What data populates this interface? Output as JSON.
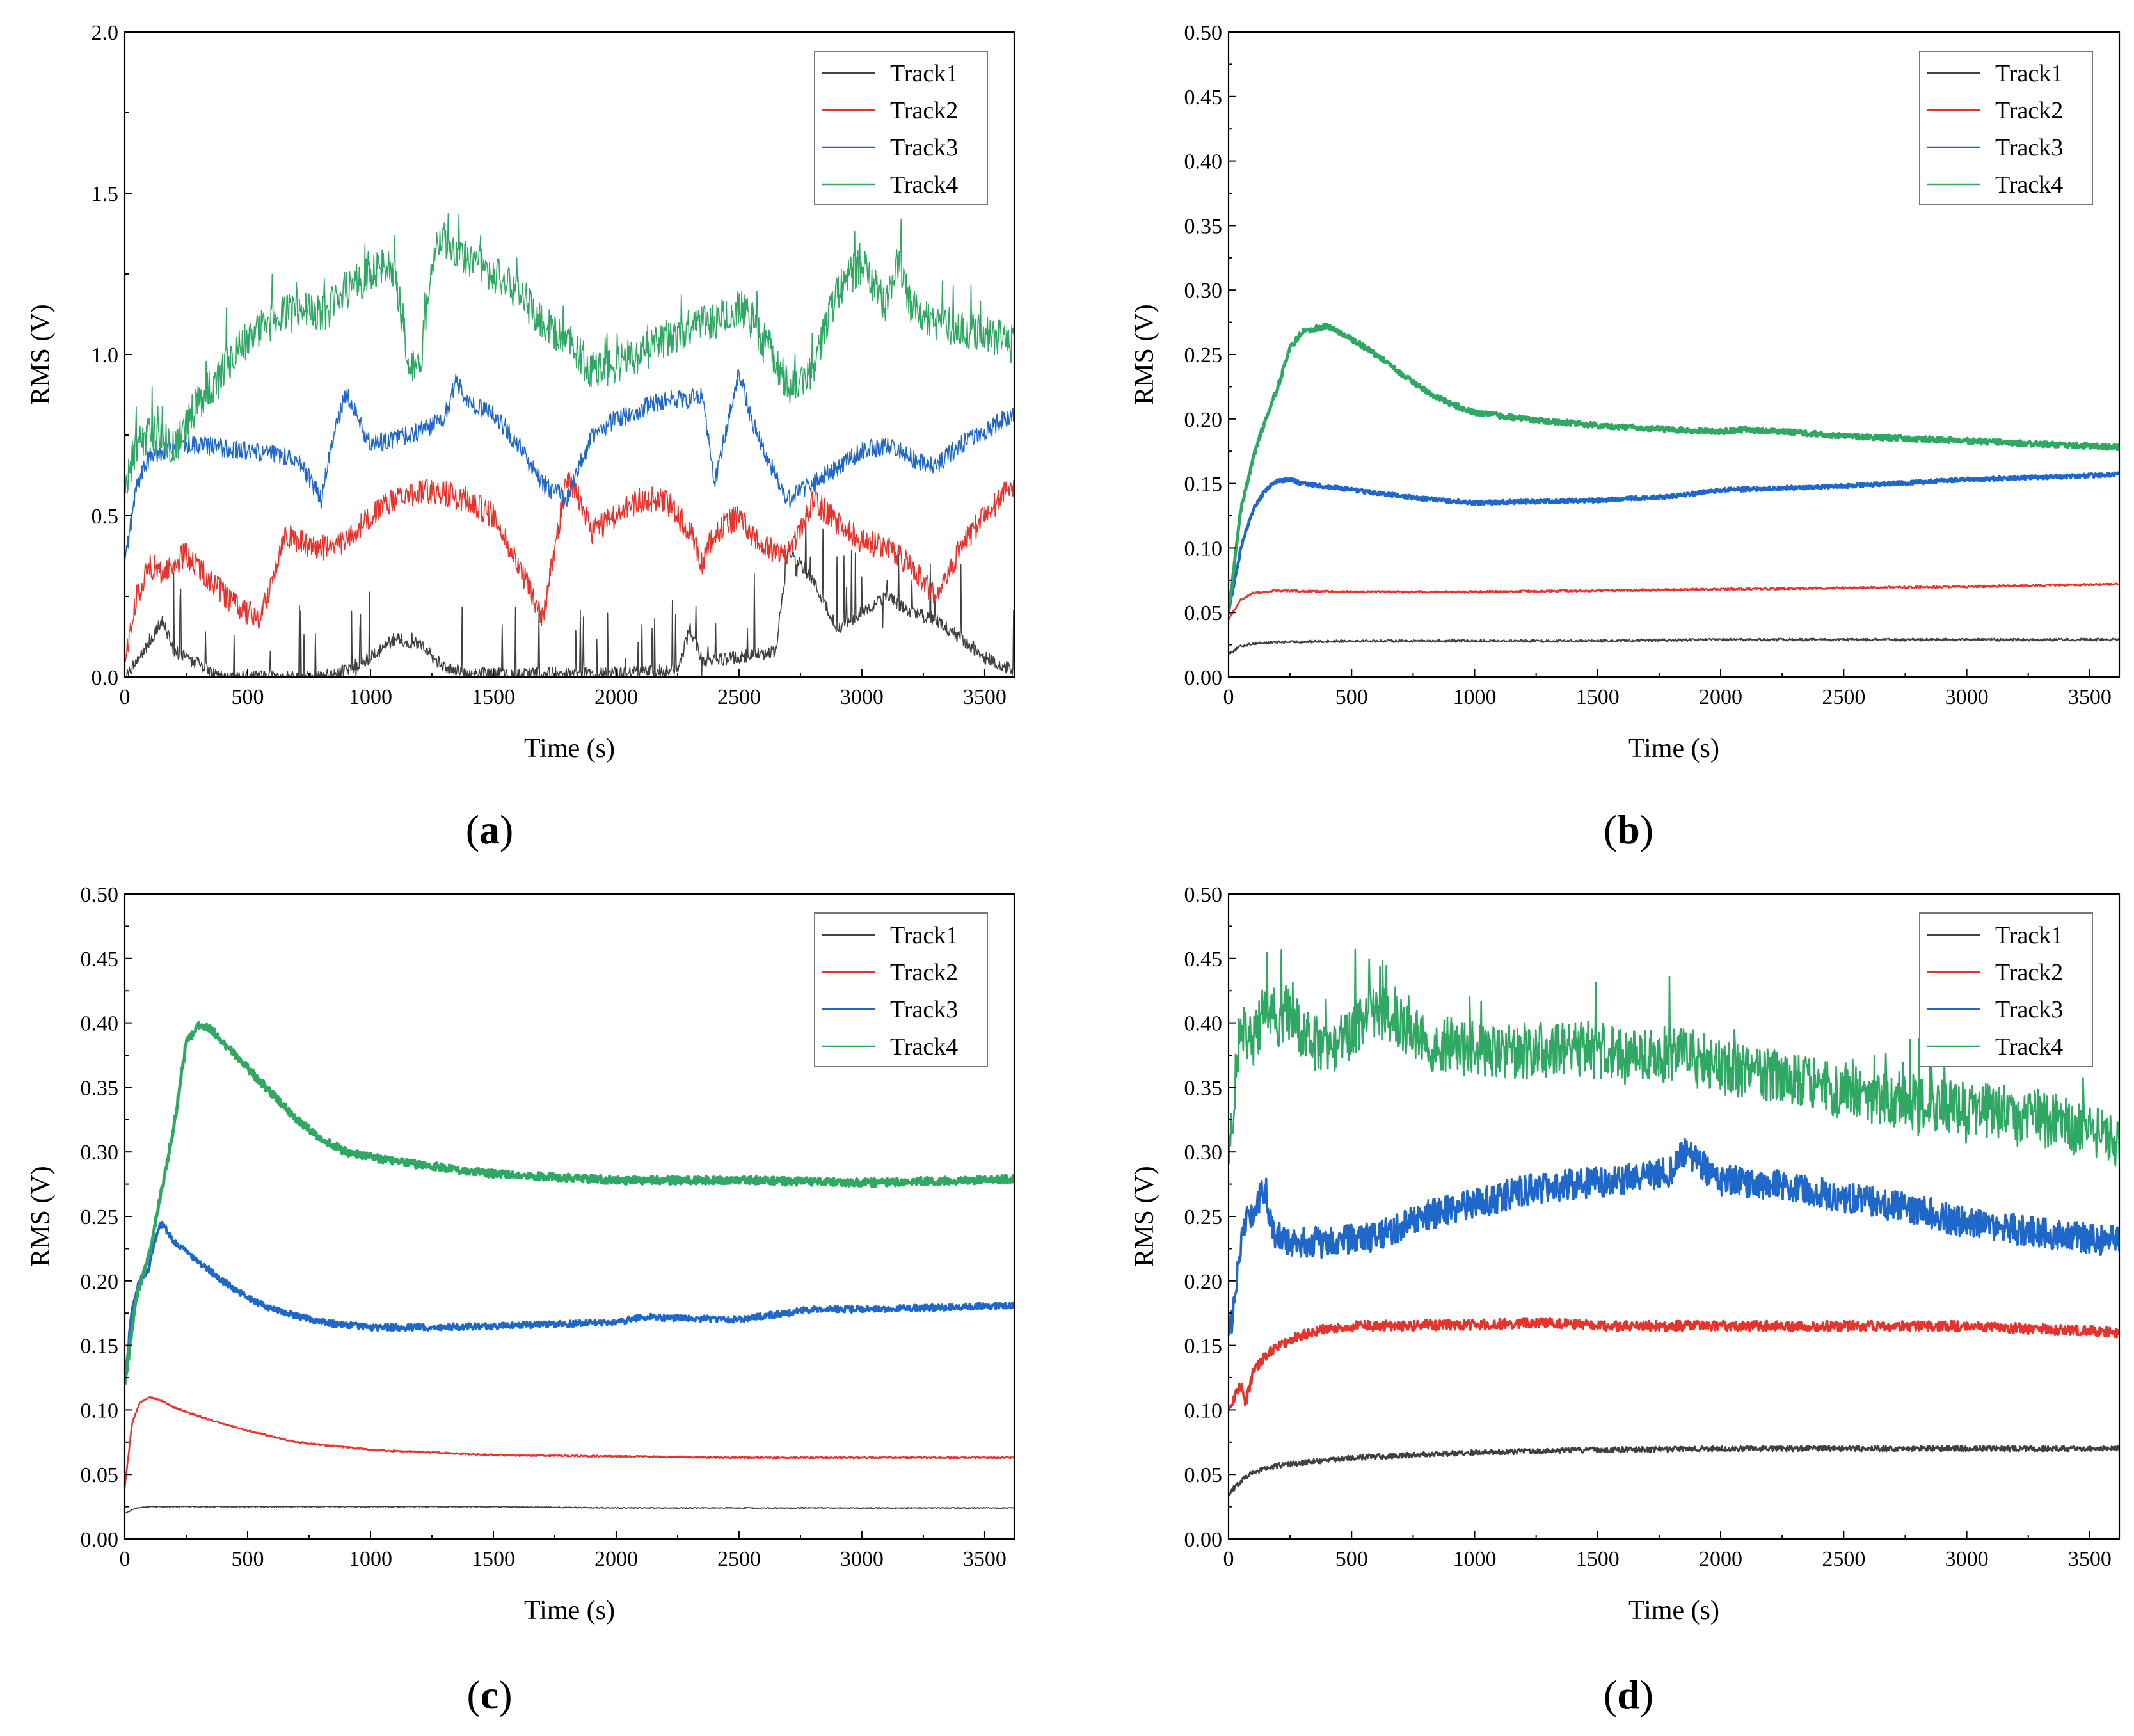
{
  "colors": {
    "Track1": "#404040",
    "Track2": "#e8332d",
    "Track3": "#1f67c9",
    "Track4": "#2ea862"
  },
  "chart_data": [
    {
      "panel": "a",
      "label": "(a)",
      "type": "line",
      "xlabel": "Time (s)",
      "ylabel": "RMS (V)",
      "xlim": [
        0,
        3620
      ],
      "ylim": [
        0,
        2.0
      ],
      "xticks": [
        0,
        500,
        1000,
        1500,
        2000,
        2500,
        3000,
        3500
      ],
      "yticks": [
        0.0,
        0.5,
        1.0,
        1.5,
        2.0
      ],
      "ytick_labels": [
        "0.0",
        "0.5",
        "1.0",
        "1.5",
        "2.0"
      ],
      "legend": {
        "position": "top-right",
        "entries": [
          "Track1",
          "Track2",
          "Track3",
          "Track4"
        ]
      },
      "series": [
        {
          "name": "Track1",
          "width": 1.6,
          "noise": 0.02,
          "spikes": 0.35,
          "x": [
            0,
            100,
            150,
            200,
            400,
            800,
            900,
            1000,
            1100,
            1200,
            1300,
            1400,
            1900,
            2250,
            2300,
            2350,
            2500,
            2650,
            2700,
            2800,
            2900,
            3000,
            3100,
            3200,
            3300,
            3400,
            3500,
            3620
          ],
          "y": [
            0.0,
            0.1,
            0.18,
            0.08,
            0.0,
            0.0,
            0.02,
            0.06,
            0.12,
            0.1,
            0.03,
            0.01,
            0.01,
            0.02,
            0.15,
            0.05,
            0.06,
            0.08,
            0.4,
            0.3,
            0.15,
            0.2,
            0.25,
            0.2,
            0.18,
            0.12,
            0.06,
            0.02
          ]
        },
        {
          "name": "Track2",
          "width": 1.6,
          "noise": 0.04,
          "spikes": 0.0,
          "x": [
            0,
            50,
            100,
            150,
            250,
            350,
            450,
            550,
            600,
            650,
            700,
            800,
            900,
            1000,
            1100,
            1200,
            1300,
            1400,
            1500,
            1600,
            1700,
            1750,
            1800,
            1850,
            1900,
            2000,
            2100,
            2200,
            2300,
            2350,
            2400,
            2500,
            2550,
            2600,
            2700,
            2800,
            2900,
            3000,
            3100,
            3200,
            3300,
            3400,
            3500,
            3620
          ],
          "y": [
            0.05,
            0.25,
            0.35,
            0.32,
            0.38,
            0.3,
            0.22,
            0.18,
            0.3,
            0.45,
            0.42,
            0.4,
            0.42,
            0.5,
            0.55,
            0.58,
            0.57,
            0.55,
            0.5,
            0.35,
            0.18,
            0.4,
            0.62,
            0.55,
            0.45,
            0.5,
            0.55,
            0.55,
            0.45,
            0.35,
            0.45,
            0.5,
            0.45,
            0.4,
            0.38,
            0.55,
            0.48,
            0.42,
            0.4,
            0.35,
            0.25,
            0.4,
            0.5,
            0.6
          ]
        },
        {
          "name": "Track3",
          "width": 1.6,
          "noise": 0.03,
          "spikes": 0.0,
          "x": [
            0,
            50,
            100,
            200,
            300,
            500,
            700,
            800,
            850,
            900,
            1000,
            1100,
            1200,
            1300,
            1350,
            1400,
            1500,
            1600,
            1700,
            1800,
            1900,
            2000,
            2100,
            2200,
            2300,
            2350,
            2400,
            2500,
            2550,
            2600,
            2700,
            2800,
            2900,
            3000,
            3100,
            3200,
            3300,
            3400,
            3500,
            3620
          ],
          "y": [
            0.35,
            0.6,
            0.68,
            0.72,
            0.72,
            0.7,
            0.68,
            0.55,
            0.75,
            0.88,
            0.72,
            0.74,
            0.76,
            0.8,
            0.92,
            0.85,
            0.82,
            0.72,
            0.6,
            0.55,
            0.75,
            0.8,
            0.83,
            0.86,
            0.86,
            0.88,
            0.6,
            0.95,
            0.8,
            0.7,
            0.55,
            0.6,
            0.65,
            0.7,
            0.72,
            0.68,
            0.65,
            0.72,
            0.76,
            0.82
          ]
        },
        {
          "name": "Track4",
          "width": 1.6,
          "noise": 0.06,
          "spikes": 0.2,
          "x": [
            0,
            50,
            100,
            200,
            300,
            400,
            500,
            600,
            700,
            800,
            900,
            1000,
            1050,
            1100,
            1150,
            1200,
            1250,
            1300,
            1400,
            1500,
            1600,
            1700,
            1800,
            1900,
            2000,
            2100,
            2200,
            2300,
            2400,
            2500,
            2600,
            2700,
            2800,
            2900,
            3000,
            3100,
            3150,
            3200,
            3300,
            3400,
            3500,
            3620
          ],
          "y": [
            0.6,
            0.72,
            0.75,
            0.72,
            0.85,
            0.95,
            1.05,
            1.1,
            1.15,
            1.12,
            1.2,
            1.25,
            1.28,
            1.25,
            1.0,
            0.95,
            1.3,
            1.35,
            1.3,
            1.25,
            1.2,
            1.1,
            1.05,
            0.95,
            0.97,
            1.0,
            1.05,
            1.08,
            1.1,
            1.15,
            1.05,
            0.9,
            0.95,
            1.2,
            1.28,
            1.15,
            1.3,
            1.15,
            1.1,
            1.08,
            1.06,
            1.05
          ]
        }
      ]
    },
    {
      "panel": "b",
      "label": "(b)",
      "type": "line",
      "xlabel": "Time (s)",
      "ylabel": "RMS (V)",
      "xlim": [
        0,
        3620
      ],
      "ylim": [
        0,
        0.5
      ],
      "xticks": [
        0,
        500,
        1000,
        1500,
        2000,
        2500,
        3000,
        3500
      ],
      "yticks": [
        0.0,
        0.05,
        0.1,
        0.15,
        0.2,
        0.25,
        0.3,
        0.35,
        0.4,
        0.45,
        0.5
      ],
      "ytick_labels": [
        "0.00",
        "0.05",
        "0.10",
        "0.15",
        "0.20",
        "0.25",
        "0.30",
        "0.35",
        "0.40",
        "0.45",
        "0.50"
      ],
      "legend": {
        "position": "top-right",
        "entries": [
          "Track1",
          "Track2",
          "Track3",
          "Track4"
        ]
      },
      "series": [
        {
          "name": "Track1",
          "width": 2.2,
          "noise": 0.001,
          "spikes": 0.0,
          "x": [
            0,
            50,
            100,
            200,
            500,
            1000,
            1500,
            2000,
            2500,
            3000,
            3620
          ],
          "y": [
            0.018,
            0.024,
            0.026,
            0.027,
            0.028,
            0.028,
            0.028,
            0.029,
            0.029,
            0.029,
            0.029
          ]
        },
        {
          "name": "Track2",
          "width": 2.6,
          "noise": 0.0008,
          "spikes": 0.0,
          "x": [
            0,
            50,
            100,
            200,
            500,
            1000,
            1500,
            2000,
            2500,
            3000,
            3620
          ],
          "y": [
            0.045,
            0.06,
            0.065,
            0.067,
            0.066,
            0.066,
            0.067,
            0.068,
            0.069,
            0.07,
            0.072
          ]
        },
        {
          "name": "Track3",
          "width": 4.5,
          "noise": 0.0015,
          "spikes": 0.0,
          "x": [
            0,
            50,
            100,
            150,
            200,
            250,
            300,
            500,
            800,
            1000,
            1200,
            1500,
            1800,
            2000,
            2500,
            3000,
            3620
          ],
          "y": [
            0.05,
            0.1,
            0.13,
            0.145,
            0.152,
            0.153,
            0.15,
            0.145,
            0.138,
            0.135,
            0.136,
            0.137,
            0.14,
            0.145,
            0.148,
            0.153,
            0.157
          ]
        },
        {
          "name": "Track4",
          "width": 5,
          "noise": 0.002,
          "spikes": 0.0,
          "x": [
            0,
            50,
            100,
            150,
            200,
            250,
            300,
            400,
            500,
            600,
            700,
            800,
            900,
            1000,
            1200,
            1500,
            2000,
            2100,
            2500,
            3000,
            3620
          ],
          "y": [
            0.05,
            0.13,
            0.17,
            0.2,
            0.225,
            0.255,
            0.268,
            0.272,
            0.262,
            0.25,
            0.235,
            0.222,
            0.212,
            0.205,
            0.2,
            0.195,
            0.19,
            0.192,
            0.187,
            0.183,
            0.178
          ]
        }
      ]
    },
    {
      "panel": "c",
      "label": "(c)",
      "type": "line",
      "xlabel": "Time (s)",
      "ylabel": "RMS (V)",
      "xlim": [
        0,
        3620
      ],
      "ylim": [
        0,
        0.5
      ],
      "xticks": [
        0,
        500,
        1000,
        1500,
        2000,
        2500,
        3000,
        3500
      ],
      "yticks": [
        0.0,
        0.05,
        0.1,
        0.15,
        0.2,
        0.25,
        0.3,
        0.35,
        0.4,
        0.45,
        0.5
      ],
      "ytick_labels": [
        "0.00",
        "0.05",
        "0.10",
        "0.15",
        "0.20",
        "0.25",
        "0.30",
        "0.35",
        "0.40",
        "0.45",
        "0.50"
      ],
      "legend": {
        "position": "top-right",
        "entries": [
          "Track1",
          "Track2",
          "Track3",
          "Track4"
        ]
      },
      "series": [
        {
          "name": "Track1",
          "width": 1.8,
          "noise": 0.0004,
          "spikes": 0.0,
          "x": [
            0,
            50,
            100,
            500,
            1000,
            1500,
            2000,
            2500,
            3000,
            3620
          ],
          "y": [
            0.02,
            0.024,
            0.025,
            0.025,
            0.025,
            0.025,
            0.024,
            0.024,
            0.024,
            0.024
          ]
        },
        {
          "name": "Track2",
          "width": 2.6,
          "noise": 0.0006,
          "spikes": 0.0,
          "x": [
            0,
            30,
            60,
            100,
            150,
            200,
            300,
            500,
            700,
            1000,
            1500,
            2000,
            2500,
            3000,
            3620
          ],
          "y": [
            0.04,
            0.09,
            0.105,
            0.11,
            0.107,
            0.102,
            0.095,
            0.084,
            0.075,
            0.069,
            0.065,
            0.064,
            0.063,
            0.063,
            0.063
          ]
        },
        {
          "name": "Track3",
          "width": 4,
          "noise": 0.0025,
          "spikes": 0.0,
          "x": [
            0,
            30,
            60,
            100,
            120,
            150,
            200,
            300,
            400,
            500,
            600,
            800,
            1000,
            1200,
            1500,
            2000,
            2100,
            2500,
            2800,
            3000,
            3620
          ],
          "y": [
            0.12,
            0.18,
            0.2,
            0.21,
            0.23,
            0.245,
            0.23,
            0.215,
            0.2,
            0.187,
            0.178,
            0.168,
            0.164,
            0.164,
            0.165,
            0.168,
            0.172,
            0.17,
            0.178,
            0.178,
            0.181
          ]
        },
        {
          "name": "Track4",
          "width": 5,
          "noise": 0.003,
          "spikes": 0.0,
          "x": [
            0,
            50,
            100,
            150,
            200,
            250,
            300,
            350,
            400,
            500,
            600,
            700,
            800,
            900,
            1000,
            1200,
            1500,
            2000,
            2500,
            3000,
            3620
          ],
          "y": [
            0.12,
            0.19,
            0.22,
            0.27,
            0.32,
            0.385,
            0.398,
            0.395,
            0.385,
            0.365,
            0.345,
            0.325,
            0.31,
            0.3,
            0.296,
            0.29,
            0.283,
            0.278,
            0.278,
            0.276,
            0.279
          ]
        }
      ]
    },
    {
      "panel": "d",
      "label": "(d)",
      "type": "line",
      "xlabel": "Time (s)",
      "ylabel": "RMS (V)",
      "xlim": [
        0,
        3620
      ],
      "ylim": [
        0,
        0.5
      ],
      "xticks": [
        0,
        500,
        1000,
        1500,
        2000,
        2500,
        3000,
        3500
      ],
      "yticks": [
        0.0,
        0.05,
        0.1,
        0.15,
        0.2,
        0.25,
        0.3,
        0.35,
        0.4,
        0.45,
        0.5
      ],
      "ytick_labels": [
        "0.00",
        "0.05",
        "0.10",
        "0.15",
        "0.20",
        "0.25",
        "0.30",
        "0.35",
        "0.40",
        "0.45",
        "0.50"
      ],
      "legend": {
        "position": "top-right",
        "entries": [
          "Track1",
          "Track2",
          "Track3",
          "Track4"
        ]
      },
      "series": [
        {
          "name": "Track1",
          "width": 3,
          "noise": 0.002,
          "spikes": 0.0,
          "x": [
            0,
            50,
            100,
            200,
            300,
            500,
            1000,
            1500,
            2000,
            2500,
            3000,
            3620
          ],
          "y": [
            0.035,
            0.045,
            0.052,
            0.057,
            0.059,
            0.063,
            0.067,
            0.069,
            0.07,
            0.07,
            0.07,
            0.07
          ]
        },
        {
          "name": "Track2",
          "width": 3.6,
          "noise": 0.004,
          "spikes": 0.0,
          "x": [
            0,
            50,
            70,
            100,
            150,
            200,
            300,
            400,
            500,
            1000,
            1300,
            1500,
            2000,
            2500,
            3000,
            3620
          ],
          "y": [
            0.1,
            0.12,
            0.105,
            0.13,
            0.142,
            0.15,
            0.158,
            0.163,
            0.165,
            0.166,
            0.168,
            0.165,
            0.165,
            0.165,
            0.165,
            0.16
          ]
        },
        {
          "name": "Track3",
          "width": 3.6,
          "noise": 0.012,
          "spikes": 0.0,
          "x": [
            0,
            30,
            60,
            100,
            150,
            180,
            250,
            400,
            600,
            800,
            1000,
            1200,
            1400,
            1600,
            1800,
            1850,
            2000,
            2200,
            2500,
            2800,
            3000,
            3200,
            3620
          ],
          "y": [
            0.15,
            0.2,
            0.245,
            0.255,
            0.272,
            0.235,
            0.23,
            0.23,
            0.235,
            0.25,
            0.26,
            0.27,
            0.275,
            0.278,
            0.285,
            0.3,
            0.278,
            0.275,
            0.265,
            0.255,
            0.245,
            0.24,
            0.23
          ]
        },
        {
          "name": "Track4",
          "width": 2.6,
          "noise": 0.022,
          "spikes": 0.06,
          "x": [
            0,
            50,
            100,
            150,
            200,
            250,
            300,
            400,
            500,
            600,
            700,
            800,
            1000,
            1200,
            1400,
            1600,
            1800,
            2000,
            2200,
            2500,
            2800,
            3000,
            3200,
            3400,
            3620
          ],
          "y": [
            0.3,
            0.4,
            0.38,
            0.42,
            0.4,
            0.41,
            0.39,
            0.38,
            0.395,
            0.41,
            0.4,
            0.385,
            0.38,
            0.378,
            0.38,
            0.378,
            0.375,
            0.368,
            0.358,
            0.348,
            0.338,
            0.332,
            0.33,
            0.322,
            0.308
          ]
        }
      ]
    }
  ]
}
